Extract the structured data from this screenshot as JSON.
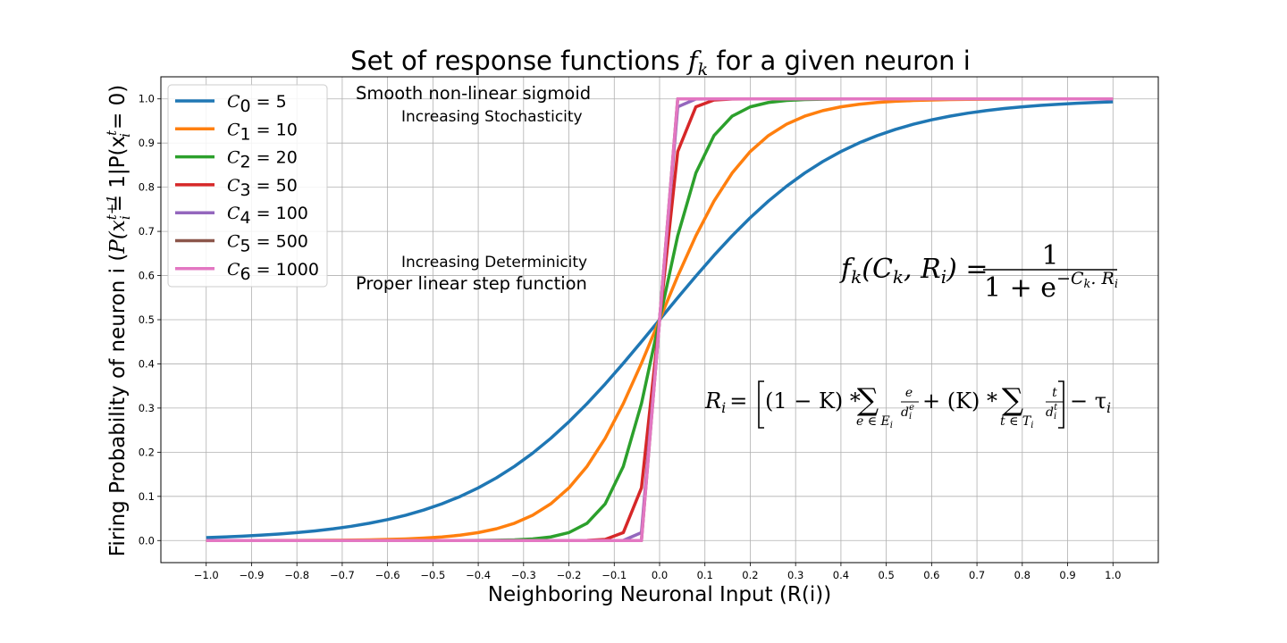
{
  "chart_data": {
    "type": "line",
    "title_prefix": "Set of response functions ",
    "title_func": "f",
    "title_sub": "k",
    "title_suffix": " for a given neuron i",
    "xlabel": "Neighboring Neuronal Input (R(i))",
    "ylabel_prefix": "Firing Probability of neuron i (",
    "ylabel_math": "P(x",
    "ylabel_sup": "t+1",
    "ylabel_mid": "= 1|P(x",
    "ylabel_sup2": "t",
    "ylabel_end": "= 0)",
    "xlim": [
      -1.1,
      1.1
    ],
    "ylim": [
      -0.05,
      1.05
    ],
    "xticks": [
      "−1.0",
      "−0.9",
      "−0.8",
      "−0.7",
      "−0.6",
      "−0.5",
      "−0.4",
      "−0.3",
      "−0.2",
      "−0.1",
      "0.0",
      "0.1",
      "0.2",
      "0.3",
      "0.4",
      "0.5",
      "0.6",
      "0.7",
      "0.8",
      "0.9",
      "1.0"
    ],
    "xtick_values": [
      -1.0,
      -0.9,
      -0.8,
      -0.7,
      -0.6,
      -0.5,
      -0.4,
      -0.3,
      -0.2,
      -0.1,
      0.0,
      0.1,
      0.2,
      0.3,
      0.4,
      0.5,
      0.6,
      0.7,
      0.8,
      0.9,
      1.0
    ],
    "yticks": [
      "0.0",
      "0.1",
      "0.2",
      "0.3",
      "0.4",
      "0.5",
      "0.6",
      "0.7",
      "0.8",
      "0.9",
      "1.0"
    ],
    "ytick_values": [
      0.0,
      0.1,
      0.2,
      0.3,
      0.4,
      0.5,
      0.6,
      0.7,
      0.8,
      0.9,
      1.0
    ],
    "grid": true,
    "legend_position": "upper-left",
    "x_sampling": {
      "start": -1.0,
      "end": 1.0,
      "count": 51
    },
    "series": [
      {
        "label_var": "C",
        "label_sub": "0",
        "label_val": "= 5",
        "C": 5,
        "color": "#1f77b4"
      },
      {
        "label_var": "C",
        "label_sub": "1",
        "label_val": "= 10",
        "C": 10,
        "color": "#ff7f0e"
      },
      {
        "label_var": "C",
        "label_sub": "2",
        "label_val": "= 20",
        "C": 20,
        "color": "#2ca02c"
      },
      {
        "label_var": "C",
        "label_sub": "3",
        "label_val": "= 50",
        "C": 50,
        "color": "#d62728"
      },
      {
        "label_var": "C",
        "label_sub": "4",
        "label_val": "= 100",
        "C": 100,
        "color": "#9467bd"
      },
      {
        "label_var": "C",
        "label_sub": "5",
        "label_val": "= 500",
        "C": 500,
        "color": "#8c564b"
      },
      {
        "label_var": "C",
        "label_sub": "6",
        "label_val": "= 1000",
        "C": 1000,
        "color": "#e377c2"
      }
    ],
    "annotations": {
      "smooth": "Smooth non-linear sigmoid",
      "stochastic": "Increasing Stochasticity",
      "deterministic": "Increasing Determinicity",
      "step": "Proper linear step function"
    },
    "formula_f": {
      "lhs": "f",
      "lhs_sub": "k",
      "args": "(C",
      "args_sub": "k",
      "args2": ", R",
      "args_sub2": "i",
      "args3": ") =",
      "numerator": "1",
      "denominator": "1 + e",
      "exponent": "−C",
      "exponent_sub": "k",
      "exponent2": ". R",
      "exponent_sub2": "i"
    },
    "formula_r": {
      "lhs": "R",
      "lhs_sub": "i",
      "eq": "=",
      "part1": "(1 − K) *",
      "sum1_sub": "e ∈ E",
      "sum1_subsub": "i",
      "frac1_num": "e",
      "frac1_den": "d",
      "frac1_den_sub": "i",
      "frac1_den_sup": "e",
      "part2": "+ (K) *",
      "sum2_sub": "t ∈ T",
      "sum2_subsub": "i",
      "frac2_num": "t",
      "frac2_den": "d",
      "frac2_den_sub": "i",
      "frac2_den_sup": "t",
      "part3": "− τ",
      "part3_sub": "i"
    }
  }
}
